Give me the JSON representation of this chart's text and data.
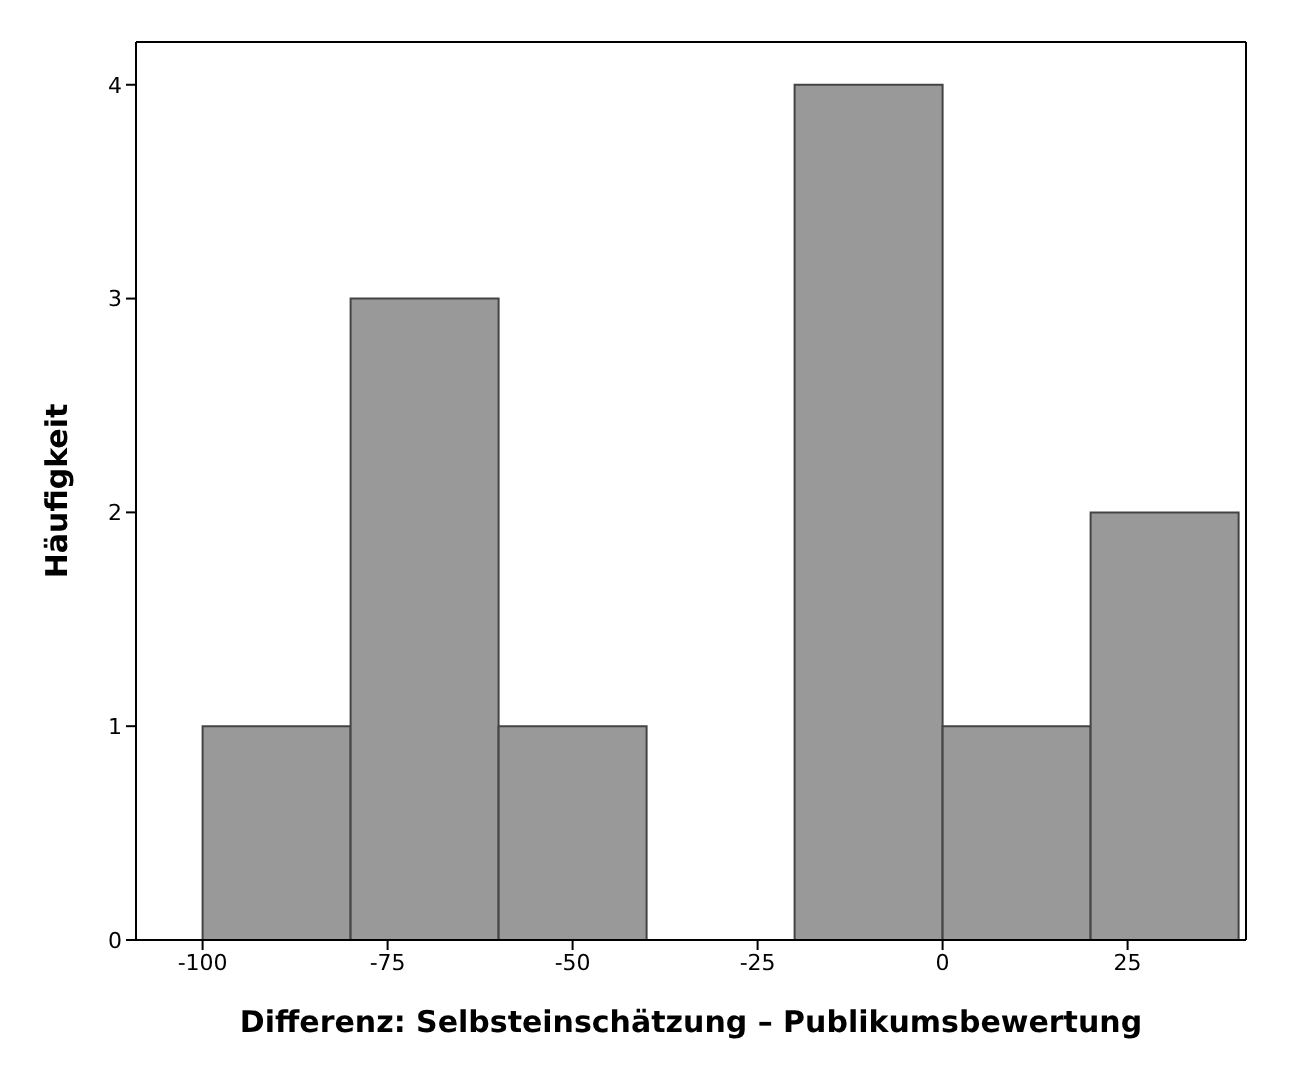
{
  "chart_data": {
    "type": "histogram",
    "xlabel": "Differenz: Selbsteinschätzung – Publikumsbewertung",
    "ylabel": "Häufigkeit",
    "bins": [
      -100,
      -80,
      -60,
      -40,
      -20,
      0,
      20,
      40
    ],
    "values": [
      1,
      3,
      1,
      0,
      4,
      1,
      2
    ],
    "color": "#999999",
    "xlim": [
      -109,
      41
    ],
    "xticks": [
      -100,
      -75,
      -50,
      -25,
      0,
      25
    ],
    "ylim": [
      0,
      4.2
    ],
    "yticks": [
      0,
      1,
      2,
      3,
      4
    ]
  }
}
